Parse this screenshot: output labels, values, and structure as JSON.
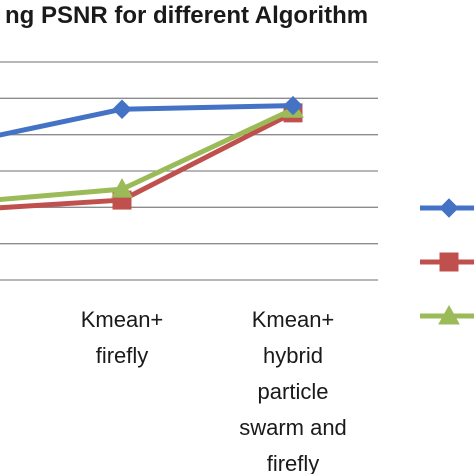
{
  "chart_data": {
    "type": "line",
    "title": "ng PSNR for different Algorithm",
    "categories": [
      "",
      "Kmean+\nfirefly",
      "Kmean+\nhybrid\nparticle\nswarm and\nfirefly"
    ],
    "ylim": [
      0,
      6
    ],
    "grid": true,
    "legend_position": "right",
    "series": [
      {
        "color": "#4472c4",
        "marker": "diamond",
        "values": [
          3.7,
          4.7,
          4.8
        ]
      },
      {
        "color": "#c0504d",
        "marker": "square",
        "values": [
          1.9,
          2.2,
          4.6
        ]
      },
      {
        "color": "#9bbb59",
        "marker": "triangle",
        "values": [
          2.1,
          2.5,
          4.7
        ]
      }
    ]
  }
}
